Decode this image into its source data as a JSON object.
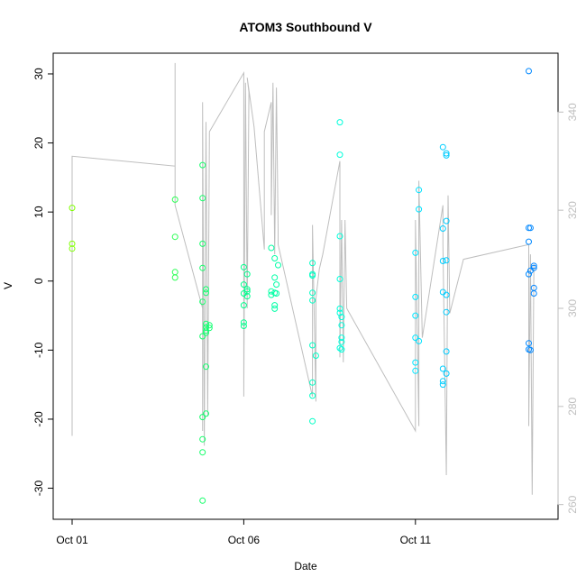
{
  "chart_data": {
    "type": "scatter",
    "title": "ATOM3 Southbound V",
    "xlabel": "Date",
    "ylabel": "V",
    "x_ticks": [
      "Oct 01",
      "Oct 06",
      "Oct 11"
    ],
    "x_range_days": [
      0,
      13.6
    ],
    "ylim": [
      -34.5,
      33
    ],
    "y_ticks": [
      -30,
      -20,
      -10,
      0,
      10,
      20,
      30
    ],
    "y2_ticks": [
      260,
      280,
      300,
      320,
      340
    ],
    "y2_range": [
      257,
      352
    ],
    "grid": false,
    "point_style": "open-circle",
    "color_gradient": [
      "#7fff00",
      "#00ff7f",
      "#00ffff",
      "#0080ff"
    ],
    "secondary_line_color": "#bebebe",
    "points": [
      [
        0.0,
        10.6
      ],
      [
        0.0,
        5.4
      ],
      [
        0.0,
        4.7
      ],
      [
        3.0,
        11.8
      ],
      [
        3.0,
        6.4
      ],
      [
        3.0,
        1.3
      ],
      [
        3.0,
        0.5
      ],
      [
        3.8,
        16.8
      ],
      [
        3.8,
        12.0
      ],
      [
        3.8,
        5.4
      ],
      [
        3.8,
        1.9
      ],
      [
        3.8,
        -3.0
      ],
      [
        3.8,
        -8.0
      ],
      [
        3.8,
        -19.7
      ],
      [
        3.8,
        -22.9
      ],
      [
        3.8,
        -24.8
      ],
      [
        3.8,
        -31.8
      ],
      [
        3.9,
        -1.2
      ],
      [
        3.9,
        -1.7
      ],
      [
        3.9,
        -6.2
      ],
      [
        3.9,
        -6.7
      ],
      [
        3.9,
        -7.2
      ],
      [
        3.9,
        -7.5
      ],
      [
        3.9,
        -12.4
      ],
      [
        3.9,
        -19.2
      ],
      [
        4.0,
        -6.4
      ],
      [
        4.0,
        -6.8
      ],
      [
        5.0,
        2.0
      ],
      [
        5.0,
        -0.5
      ],
      [
        5.0,
        -1.8
      ],
      [
        5.0,
        -3.5
      ],
      [
        5.0,
        -6.0
      ],
      [
        5.0,
        -6.5
      ],
      [
        5.1,
        1.0
      ],
      [
        5.1,
        -1.2
      ],
      [
        5.1,
        -1.5
      ],
      [
        5.1,
        -2.2
      ],
      [
        5.8,
        4.8
      ],
      [
        5.8,
        -1.5
      ],
      [
        5.8,
        -2.0
      ],
      [
        5.9,
        3.3
      ],
      [
        5.9,
        0.5
      ],
      [
        5.9,
        -1.7
      ],
      [
        5.9,
        -3.5
      ],
      [
        5.9,
        -4.0
      ],
      [
        5.95,
        -0.5
      ],
      [
        5.95,
        -1.8
      ],
      [
        6.0,
        2.3
      ],
      [
        7.0,
        2.6
      ],
      [
        7.0,
        1.0
      ],
      [
        7.0,
        0.8
      ],
      [
        7.0,
        -1.7
      ],
      [
        7.0,
        -2.8
      ],
      [
        7.0,
        -9.3
      ],
      [
        7.0,
        -14.7
      ],
      [
        7.0,
        -16.6
      ],
      [
        7.0,
        -20.3
      ],
      [
        7.1,
        -10.8
      ],
      [
        7.8,
        23.0
      ],
      [
        7.8,
        18.3
      ],
      [
        7.8,
        6.5
      ],
      [
        7.8,
        0.3
      ],
      [
        7.8,
        -4.0
      ],
      [
        7.8,
        -4.6
      ],
      [
        7.8,
        -9.7
      ],
      [
        7.85,
        -5.2
      ],
      [
        7.85,
        -6.4
      ],
      [
        7.85,
        -8.2
      ],
      [
        7.85,
        -8.8
      ],
      [
        7.85,
        -9.9
      ],
      [
        10.0,
        4.1
      ],
      [
        10.0,
        -2.3
      ],
      [
        10.0,
        -5.0
      ],
      [
        10.0,
        -8.2
      ],
      [
        10.0,
        -11.8
      ],
      [
        10.0,
        -13.0
      ],
      [
        10.1,
        13.2
      ],
      [
        10.1,
        10.4
      ],
      [
        10.1,
        -8.7
      ],
      [
        10.8,
        19.4
      ],
      [
        10.8,
        7.6
      ],
      [
        10.8,
        2.9
      ],
      [
        10.8,
        -1.6
      ],
      [
        10.8,
        -12.7
      ],
      [
        10.8,
        -14.5
      ],
      [
        10.8,
        -15.0
      ],
      [
        10.9,
        18.5
      ],
      [
        10.9,
        18.2
      ],
      [
        10.9,
        8.7
      ],
      [
        10.9,
        3.0
      ],
      [
        10.9,
        -2.0
      ],
      [
        10.9,
        -4.5
      ],
      [
        10.9,
        -10.2
      ],
      [
        10.9,
        -13.4
      ],
      [
        13.3,
        30.4
      ],
      [
        13.3,
        7.7
      ],
      [
        13.3,
        5.7
      ],
      [
        13.3,
        1.0
      ],
      [
        13.3,
        -9.0
      ],
      [
        13.3,
        -9.9
      ],
      [
        13.35,
        7.7
      ],
      [
        13.35,
        1.5
      ],
      [
        13.35,
        -10.0
      ],
      [
        13.45,
        2.2
      ],
      [
        13.45,
        1.9
      ],
      [
        13.45,
        -1.0
      ],
      [
        13.45,
        -1.8
      ]
    ],
    "secondary_series": [
      [
        0.0,
        274
      ],
      [
        0.0,
        331
      ],
      [
        3.0,
        329
      ],
      [
        3.0,
        350
      ],
      [
        3.0,
        326
      ],
      [
        3.0,
        340
      ],
      [
        3.0,
        334
      ],
      [
        3.0,
        321
      ],
      [
        3.8,
        300
      ],
      [
        3.8,
        275
      ],
      [
        3.8,
        342
      ],
      [
        3.85,
        272
      ],
      [
        3.9,
        338
      ],
      [
        3.95,
        278
      ],
      [
        4.0,
        336
      ],
      [
        5.0,
        348
      ],
      [
        5.0,
        282
      ],
      [
        5.05,
        346
      ],
      [
        5.1,
        300
      ],
      [
        5.15,
        344
      ],
      [
        5.1,
        347
      ],
      [
        5.3,
        337
      ],
      [
        5.6,
        312
      ],
      [
        5.6,
        336
      ],
      [
        5.8,
        342
      ],
      [
        5.8,
        319
      ],
      [
        5.85,
        346
      ],
      [
        5.9,
        311
      ],
      [
        5.95,
        345
      ],
      [
        6.0,
        316
      ],
      [
        6.0,
        313
      ],
      [
        7.0,
        282
      ],
      [
        7.0,
        317
      ],
      [
        7.1,
        281
      ],
      [
        7.1,
        302
      ],
      [
        7.2,
        308
      ],
      [
        7.3,
        311
      ],
      [
        7.8,
        330
      ],
      [
        7.8,
        290
      ],
      [
        7.85,
        318
      ],
      [
        7.9,
        289
      ],
      [
        7.95,
        318
      ],
      [
        8.0,
        300
      ],
      [
        10.0,
        275
      ],
      [
        10.0,
        318
      ],
      [
        10.1,
        276
      ],
      [
        10.1,
        326
      ],
      [
        10.2,
        294
      ],
      [
        10.8,
        321
      ],
      [
        10.8,
        313
      ],
      [
        10.9,
        266
      ],
      [
        10.95,
        323
      ],
      [
        11.0,
        299
      ],
      [
        11.4,
        310
      ],
      [
        13.3,
        313
      ],
      [
        13.3,
        276
      ],
      [
        13.35,
        311
      ],
      [
        13.4,
        262
      ],
      [
        13.45,
        309
      ]
    ]
  }
}
